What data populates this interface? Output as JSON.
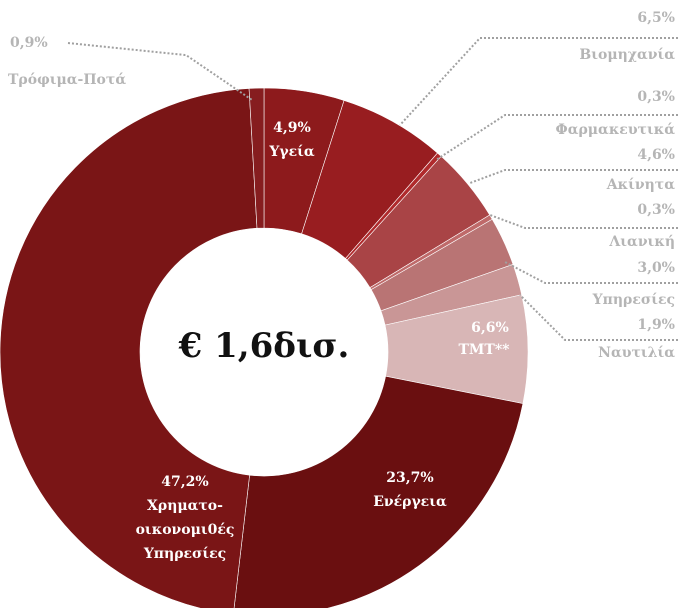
{
  "chart_data": {
    "type": "donut",
    "title": "€ 1,6δισ.",
    "categories": [
      "Υγεία",
      "Βιομηχανία",
      "Φαρμακευτικά",
      "Ακίνητα",
      "Λιανική",
      "Υπηρεσίες",
      "Ναυτιλία",
      "TMT**",
      "Ενέργεια",
      "Χρηματο-οικονομι0ές Υπηρεσίες",
      "Τρόφιμα-Ποτά"
    ],
    "values": [
      4.9,
      6.5,
      0.3,
      4.6,
      0.3,
      3.0,
      1.9,
      6.6,
      23.7,
      47.2,
      0.9
    ],
    "value_labels": [
      "4,9%",
      "6,5%",
      "0,3%",
      "4,6%",
      "0,3%",
      "3,0%",
      "1,9%",
      "6,6%",
      "23,7%",
      "47,2%",
      "0,9%"
    ],
    "colors": [
      "#8d1a1c",
      "#981d20",
      "#b02a2c",
      "#a94446",
      "#bf6a6a",
      "#b97474",
      "#c99696",
      "#d8b6b6",
      "#6a0f10",
      "#7a1516",
      "#861d1f"
    ]
  }
}
